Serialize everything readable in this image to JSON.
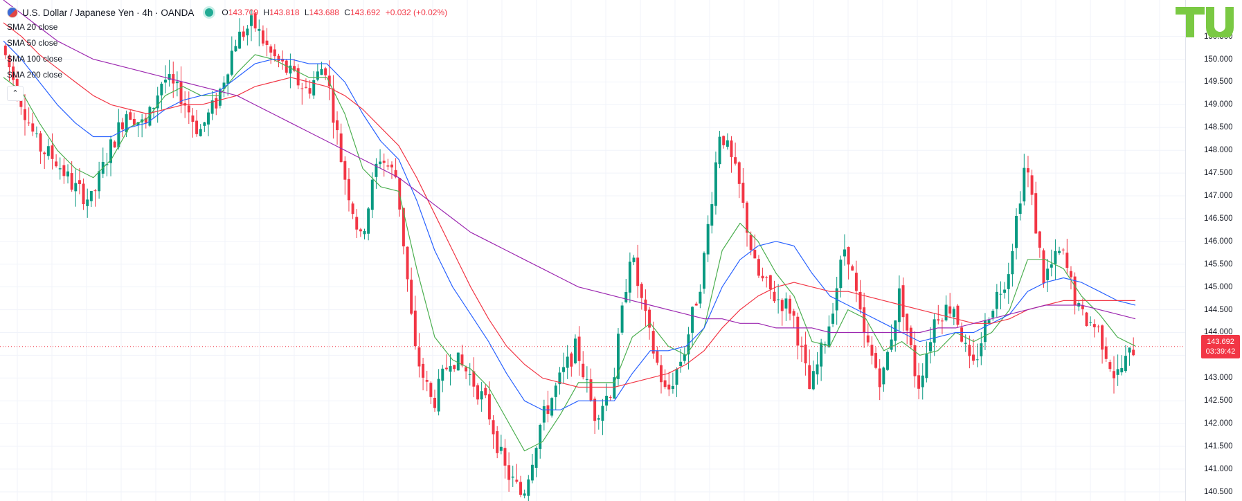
{
  "header": {
    "title": "U.S. Dollar / Japanese Yen · 4h · OANDA",
    "ohlc": {
      "o_label": "O",
      "o": "143.709",
      "h_label": "H",
      "h": "143.818",
      "l_label": "L",
      "l": "143.688",
      "c_label": "C",
      "c": "143.692",
      "change": "+0.032 (+0.02%)"
    }
  },
  "indicators": [
    {
      "label": "SMA 20 close",
      "color": "#4caf50"
    },
    {
      "label": "SMA 50 close",
      "color": "#2962ff"
    },
    {
      "label": "SMA 100 close",
      "color": "#f23645"
    },
    {
      "label": "SMA 200 close",
      "color": "#9c27b0"
    }
  ],
  "collapse_glyph": "⌃",
  "last_price": {
    "value": "143.692",
    "countdown": "03:39:42",
    "color": "#f23645"
  },
  "colors": {
    "up": "#089981",
    "down": "#f23645"
  },
  "chart_data": {
    "type": "line",
    "title": "U.S. Dollar / Japanese Yen · 4h · OANDA",
    "ylim": [
      140.3,
      151.3
    ],
    "y_ticks": [
      "140.500",
      "141.000",
      "141.500",
      "142.000",
      "142.500",
      "143.000",
      "143.500",
      "144.000",
      "144.500",
      "145.000",
      "145.500",
      "146.000",
      "146.500",
      "147.000",
      "147.500",
      "148.000",
      "148.500",
      "149.000",
      "149.500",
      "150.000",
      "150.500"
    ],
    "grid": true,
    "close_path": [
      150.3,
      149.2,
      148.1,
      147.8,
      147.2,
      146.9,
      148.0,
      148.9,
      148.5,
      149.6,
      149.2,
      148.4,
      149.1,
      150.4,
      150.8,
      150.1,
      149.7,
      149.3,
      149.9,
      147.6,
      146.0,
      147.9,
      147.4,
      143.6,
      142.4,
      143.5,
      143.1,
      142.4,
      141.0,
      140.4,
      142.0,
      142.9,
      143.7,
      142.2,
      142.8,
      145.8,
      144.0,
      142.6,
      143.6,
      145.3,
      148.5,
      147.3,
      145.3,
      144.8,
      144.5,
      142.7,
      144.1,
      146.0,
      143.9,
      142.9,
      144.9,
      142.8,
      144.4,
      144.6,
      143.1,
      144.5,
      145.3,
      147.8,
      145.2,
      145.8,
      144.4,
      144.1,
      143.0,
      143.65
    ],
    "series": [
      {
        "name": "SMA 20 close",
        "values": [
          149.6,
          149.3,
          148.6,
          148.0,
          147.6,
          147.4,
          147.8,
          148.5,
          148.7,
          149.2,
          149.4,
          149.2,
          149.2,
          149.7,
          150.1,
          150.0,
          149.8,
          149.6,
          149.6,
          148.8,
          147.6,
          147.2,
          147.1,
          145.4,
          143.9,
          143.4,
          143.2,
          142.8,
          142.1,
          141.4,
          141.6,
          142.2,
          142.9,
          142.9,
          142.9,
          143.9,
          144.2,
          143.7,
          143.5,
          144.1,
          145.8,
          146.4,
          146.0,
          145.3,
          144.8,
          143.8,
          143.7,
          144.5,
          144.3,
          143.6,
          143.8,
          143.5,
          143.6,
          144.0,
          143.8,
          144.0,
          144.5,
          145.6,
          145.6,
          145.4,
          144.8,
          144.4,
          143.9,
          143.7
        ]
      },
      {
        "name": "SMA 50 close",
        "values": [
          150.4,
          150.0,
          149.5,
          149.0,
          148.6,
          148.3,
          148.3,
          148.5,
          148.6,
          148.9,
          149.1,
          149.2,
          149.3,
          149.6,
          149.9,
          150.0,
          150.0,
          149.9,
          149.9,
          149.5,
          148.8,
          148.2,
          147.8,
          146.9,
          145.8,
          145.0,
          144.4,
          143.8,
          143.1,
          142.5,
          142.3,
          142.3,
          142.5,
          142.5,
          142.5,
          143.1,
          143.6,
          143.6,
          143.7,
          144.1,
          145.0,
          145.6,
          145.9,
          146.0,
          145.9,
          145.3,
          144.8,
          144.6,
          144.4,
          144.2,
          144.0,
          143.8,
          143.9,
          144.0,
          144.0,
          144.2,
          144.4,
          144.9,
          145.1,
          145.2,
          145.1,
          144.9,
          144.7,
          144.6
        ]
      },
      {
        "name": "SMA 100 close",
        "values": [
          150.8,
          150.5,
          150.1,
          149.8,
          149.5,
          149.2,
          149.0,
          148.9,
          148.8,
          148.9,
          149.0,
          149.0,
          149.1,
          149.2,
          149.4,
          149.5,
          149.6,
          149.5,
          149.4,
          149.2,
          148.9,
          148.5,
          148.1,
          147.4,
          146.6,
          145.8,
          145.0,
          144.3,
          143.7,
          143.3,
          143.0,
          142.9,
          142.8,
          142.8,
          142.8,
          142.9,
          143.0,
          143.1,
          143.3,
          143.6,
          144.1,
          144.5,
          144.8,
          145.0,
          145.1,
          145.0,
          144.9,
          144.9,
          144.8,
          144.7,
          144.6,
          144.5,
          144.4,
          144.3,
          144.2,
          144.2,
          144.3,
          144.5,
          144.6,
          144.7,
          144.7,
          144.7,
          144.7,
          144.7
        ]
      },
      {
        "name": "SMA 200 close",
        "values": [
          151.3,
          151.0,
          150.7,
          150.4,
          150.2,
          150.0,
          149.9,
          149.8,
          149.7,
          149.6,
          149.5,
          149.4,
          149.3,
          149.2,
          149.0,
          148.8,
          148.6,
          148.4,
          148.2,
          148.0,
          147.8,
          147.6,
          147.4,
          147.1,
          146.8,
          146.5,
          146.2,
          146.0,
          145.8,
          145.6,
          145.4,
          145.2,
          145.0,
          144.9,
          144.8,
          144.7,
          144.6,
          144.5,
          144.4,
          144.3,
          144.3,
          144.2,
          144.2,
          144.1,
          144.1,
          144.1,
          144.0,
          144.0,
          144.0,
          144.0,
          144.0,
          144.0,
          144.1,
          144.1,
          144.2,
          144.3,
          144.4,
          144.5,
          144.6,
          144.6,
          144.6,
          144.5,
          144.4,
          144.3
        ]
      }
    ]
  }
}
